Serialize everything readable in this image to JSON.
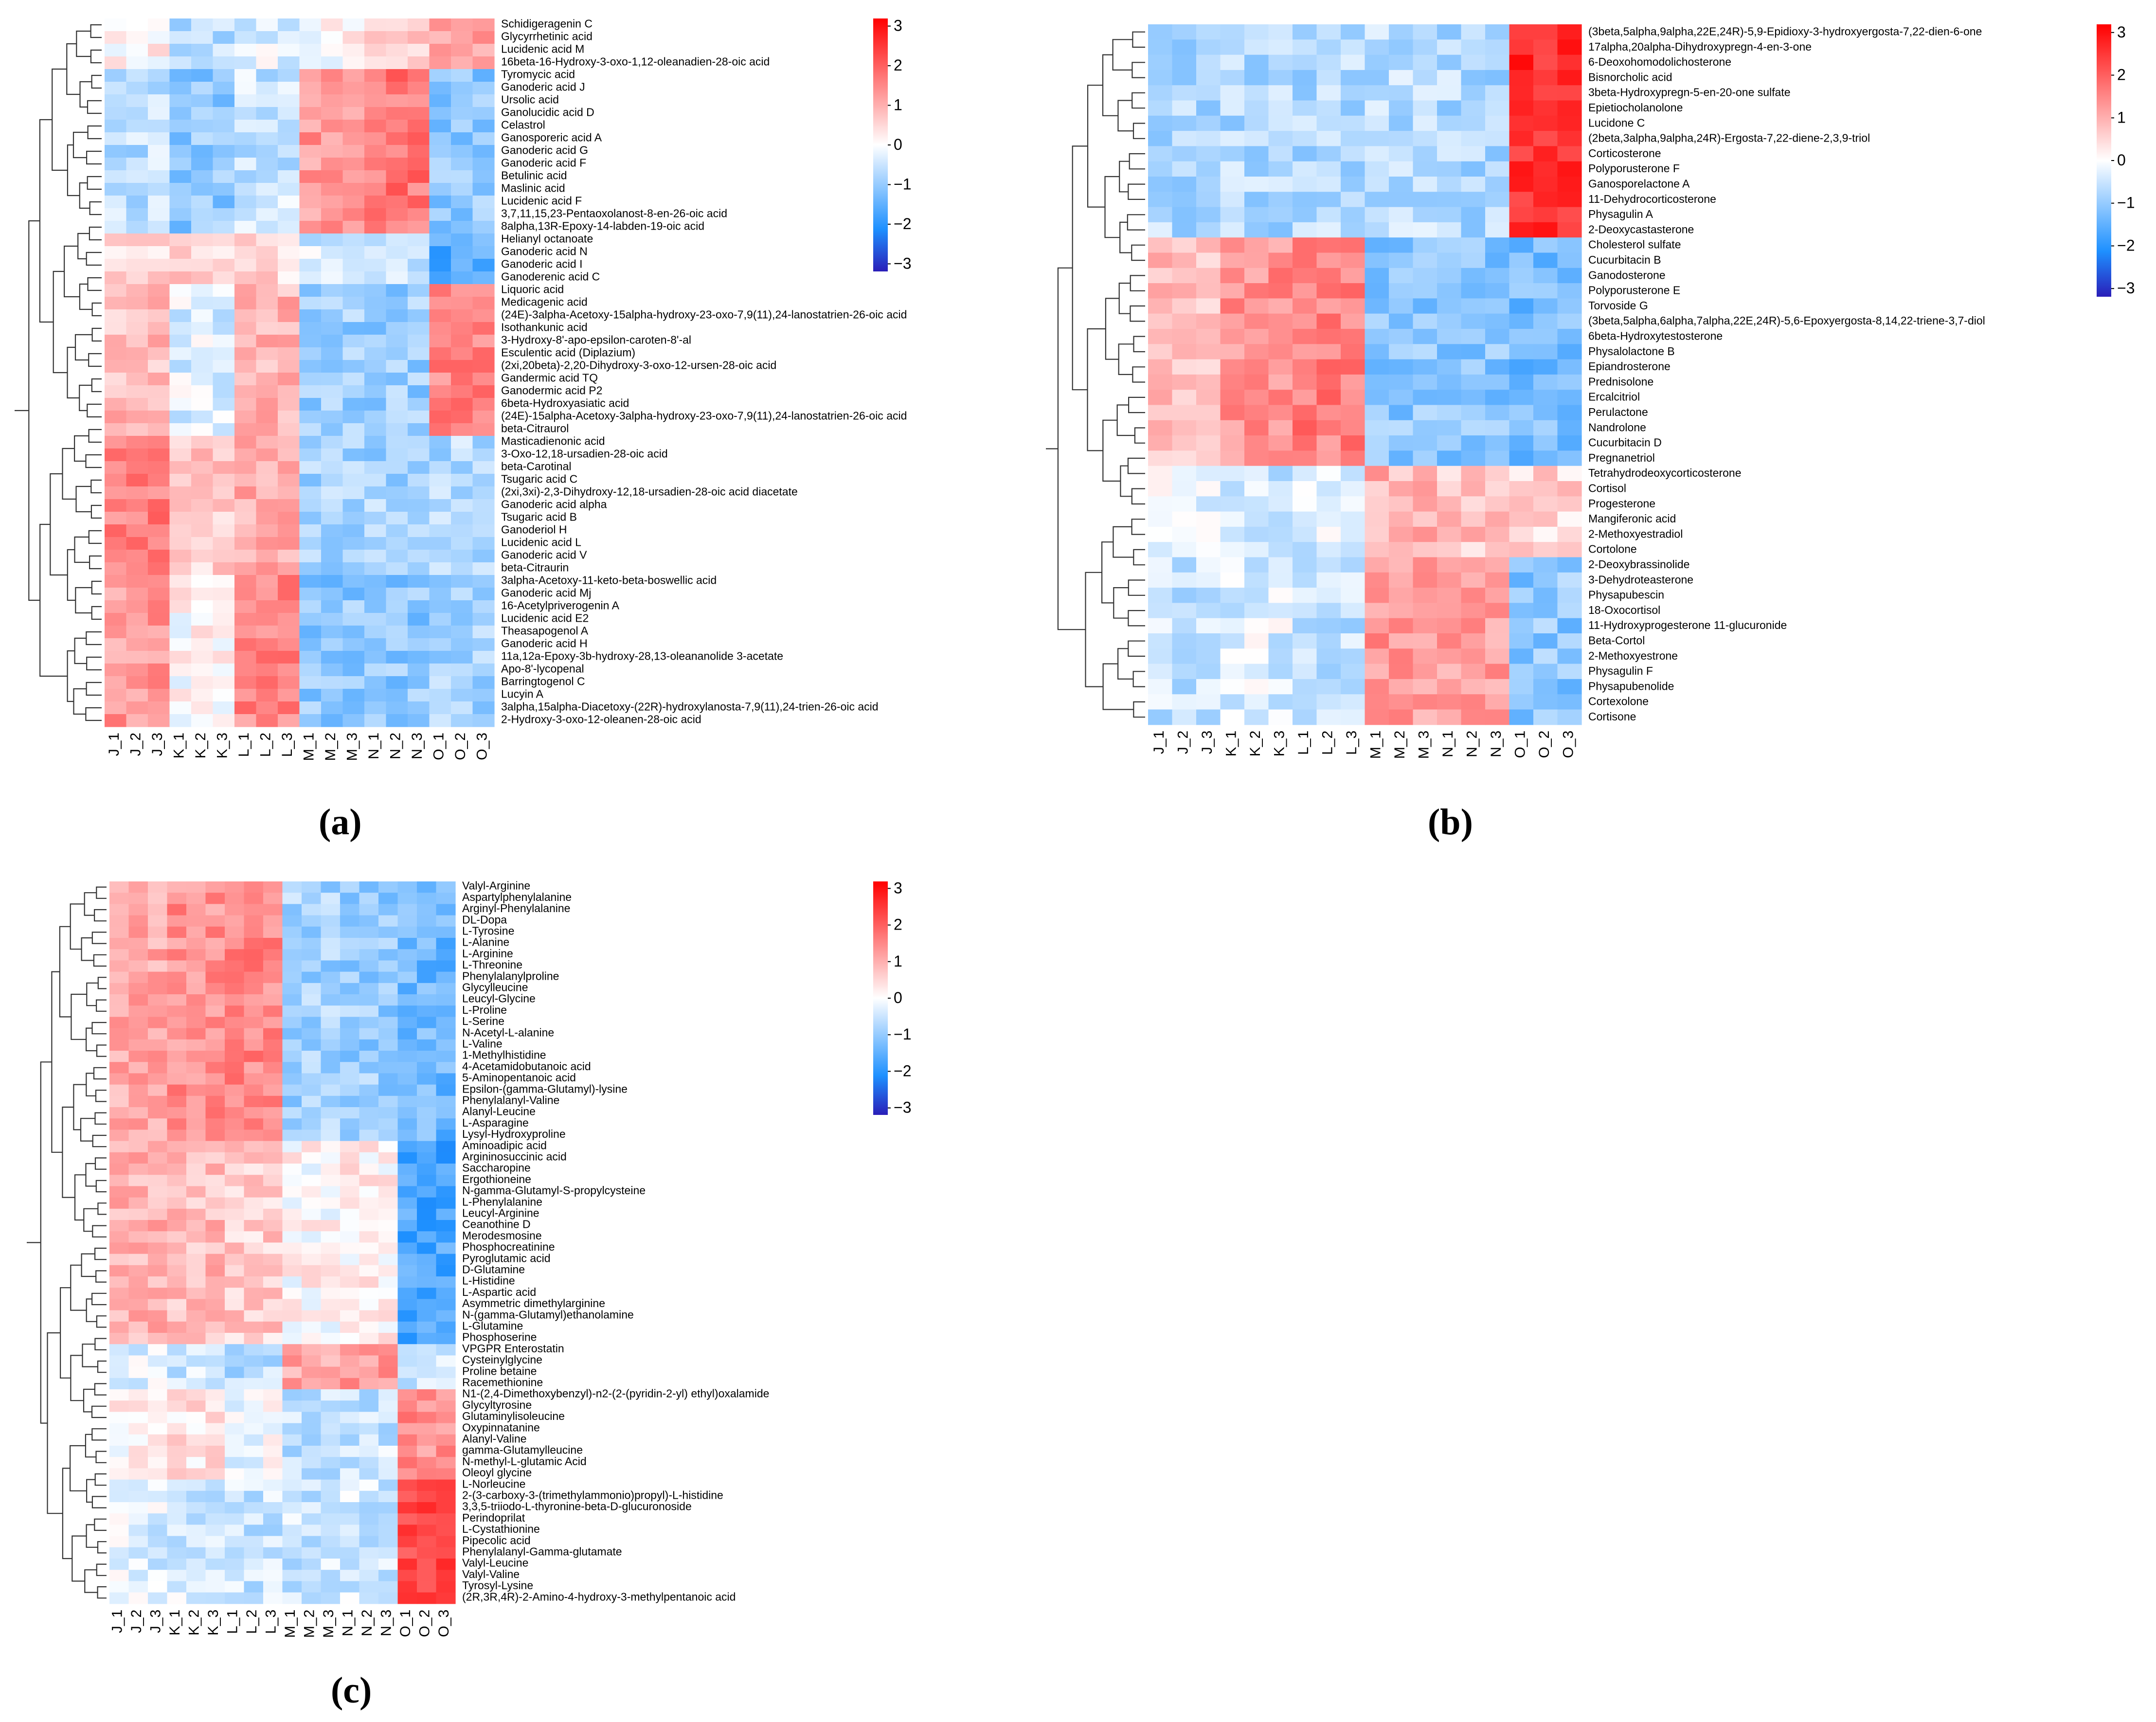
{
  "figure": {
    "panel_labels": [
      "(a)",
      "(b)",
      "(c)"
    ]
  },
  "colors": {
    "high": "#ff0000",
    "mid": "#ffffff",
    "low_mid": "#1e90ff",
    "low": "#2a1eb8",
    "dendrogram": "#333333",
    "text": "#000000"
  },
  "chart_data": [
    {
      "type": "heatmap",
      "panel": "(a)",
      "columns": [
        "J_1",
        "J_2",
        "J_3",
        "K_1",
        "K_2",
        "K_3",
        "L_1",
        "L_2",
        "L_3",
        "M_1",
        "M_2",
        "M_3",
        "N_1",
        "N_2",
        "N_3",
        "O_1",
        "O_2",
        "O_3"
      ],
      "colorbar": {
        "range": [
          -3,
          3
        ],
        "ticks": [
          "3",
          "2",
          "1",
          "0",
          "−1",
          "−2",
          "−3"
        ]
      },
      "rows": [
        "Schidigeragenin C",
        "Glycyrrhetinic acid",
        "Lucidenic acid M",
        "16beta-16-Hydroxy-3-oxo-1,12-oleanadien-28-oic acid",
        "Tyromycic acid",
        "Ganoderic acid J",
        "Ursolic acid",
        "Ganolucidic acid D",
        "Celastrol",
        "Ganosporeric acid A",
        "Ganoderic acid G",
        "Ganoderic acid F",
        "Betulinic acid",
        "Maslinic acid",
        "Lucidenic acid F",
        "3,7,11,15,23-Pentaoxolanost-8-en-26-oic acid",
        "8alpha,13R-Epoxy-14-labden-19-oic acid",
        "Helianyl octanoate",
        "Ganoderic acid N",
        "Ganoderic acid I",
        "Ganoderenic acid C",
        "Liquoric acid",
        "Medicagenic acid",
        "(24E)-3alpha-Acetoxy-15alpha-hydroxy-23-oxo-7,9(11),24-lanostatrien-26-oic acid",
        "Isothankunic acid",
        "3-Hydroxy-8'-apo-epsilon-caroten-8'-al",
        "Esculentic acid (Diplazium)",
        "(2xi,20beta)-2,20-Dihydroxy-3-oxo-12-ursen-28-oic acid",
        "Gandermic acid TQ",
        "Ganodermic acid P2",
        "6beta-Hydroxyasiatic acid",
        "(24E)-15alpha-Acetoxy-3alpha-hydroxy-23-oxo-7,9(11),24-lanostatrien-26-oic acid",
        "beta-Citraurol",
        "Masticadienonic acid",
        "3-Oxo-12,18-ursadien-28-oic acid",
        "beta-Carotinal",
        "Tsugaric acid C",
        "(2xi,3xi)-2,3-Dihydroxy-12,18-ursadien-28-oic acid diacetate",
        "Ganoderic acid alpha",
        "Tsugaric acid B",
        "Ganoderiol H",
        "Lucidenic acid L",
        "Ganoderic acid V",
        "beta-Citraurin",
        "3alpha-Acetoxy-11-keto-beta-boswellic acid",
        "Ganoderic acid Mj",
        "16-Acetylpriverogenin A",
        "Lucidenic acid E2",
        "Theasapogenol A",
        "Ganoderic acid H",
        "11a,12a-Epoxy-3b-hydroxy-28,13-oleananolide 3-acetate",
        "Apo-8'-lycopenal",
        "Barringtogenol C",
        "Lucyin A",
        "3alpha,15alpha-Diacetoxy-(22R)-hydroxylanosta-7,9(11),24-trien-26-oic acid",
        "2-Hydroxy-3-oxo-12-oleanen-28-oic acid"
      ]
    },
    {
      "type": "heatmap",
      "panel": "(b)",
      "columns": [
        "J_1",
        "J_2",
        "J_3",
        "K_1",
        "K_2",
        "K_3",
        "L_1",
        "L_2",
        "L_3",
        "M_1",
        "M_2",
        "M_3",
        "N_1",
        "N_2",
        "N_3",
        "O_1",
        "O_2",
        "O_3"
      ],
      "colorbar": {
        "range": [
          -3,
          3
        ],
        "ticks": [
          "3",
          "2",
          "1",
          "0",
          "−1",
          "−2",
          "−3"
        ]
      },
      "rows": [
        "(3beta,5alpha,9alpha,22E,24R)-5,9-Epidioxy-3-hydroxyergosta-7,22-dien-6-one",
        "17alpha,20alpha-Dihydroxypregn-4-en-3-one",
        "6-Deoxohomodolichosterone",
        "Bisnorcholic acid",
        "3beta-Hydroxypregn-5-en-20-one sulfate",
        "Epietiocholanolone",
        "Lucidone C",
        "(2beta,3alpha,9alpha,24R)-Ergosta-7,22-diene-2,3,9-triol",
        "Corticosterone",
        "Polyporusterone F",
        "Ganosporelactone A",
        "11-Dehydrocorticosterone",
        "Physagulin A",
        "2-Deoxycastasterone",
        "Cholesterol sulfate",
        "Cucurbitacin B",
        "Ganodosterone",
        "Polyporusterone E",
        "Torvoside G",
        "(3beta,5alpha,6alpha,7alpha,22E,24R)-5,6-Epoxyergosta-8,14,22-triene-3,7-diol",
        "6beta-Hydroxytestosterone",
        "Physalolactone B",
        "Epiandrosterone",
        "Prednisolone",
        "Ercalcitriol",
        "Perulactone",
        "Nandrolone",
        "Cucurbitacin D",
        "Pregnanetriol",
        "Tetrahydrodeoxycorticosterone",
        "Cortisol",
        "Progesterone",
        "Mangiferonic acid",
        "2-Methoxyestradiol",
        "Cortolone",
        "2-Deoxybrassinolide",
        "3-Dehydroteasterone",
        "Physapubescin",
        "18-Oxocortisol",
        "11-Hydroxyprogesterone 11-glucuronide",
        "Beta-Cortol",
        "2-Methoxyestrone",
        "Physagulin F",
        "Physapubenolide",
        "Cortexolone",
        "Cortisone"
      ]
    },
    {
      "type": "heatmap",
      "panel": "(c)",
      "columns": [
        "J_1",
        "J_2",
        "J_3",
        "K_1",
        "K_2",
        "K_3",
        "L_1",
        "L_2",
        "L_3",
        "M_1",
        "M_2",
        "M_3",
        "N_1",
        "N_2",
        "N_3",
        "O_1",
        "O_2",
        "O_3"
      ],
      "colorbar": {
        "range": [
          -3,
          3
        ],
        "ticks": [
          "3",
          "2",
          "1",
          "0",
          "−1",
          "−2",
          "−3"
        ]
      },
      "rows": [
        "Valyl-Arginine",
        "Aspartylphenylalanine",
        "Arginyl-Phenylalanine",
        "DL-Dopa",
        "L-Tyrosine",
        "L-Alanine",
        "L-Arginine",
        "L-Threonine",
        "Phenylalanylproline",
        "Glycylleucine",
        "Leucyl-Glycine",
        "L-Proline",
        "L-Serine",
        "N-Acetyl-L-alanine",
        "L-Valine",
        "1-Methylhistidine",
        "4-Acetamidobutanoic acid",
        "5-Aminopentanoic acid",
        "Epsilon-(gamma-Glutamyl)-lysine",
        "Phenylalanyl-Valine",
        "Alanyl-Leucine",
        "L-Asparagine",
        "Lysyl-Hydroxyproline",
        "Aminoadipic acid",
        "Argininosuccinic acid",
        "Saccharopine",
        "Ergothioneine",
        "N-gamma-Glutamyl-S-propylcysteine",
        "L-Phenylalanine",
        "Leucyl-Arginine",
        "Ceanothine D",
        "Merodesmosine",
        "Phosphocreatinine",
        "Pyroglutamic acid",
        "D-Glutamine",
        "L-Histidine",
        "L-Aspartic acid",
        "Asymmetric dimethylarginine",
        "N-(gamma-Glutamyl)ethanolamine",
        "L-Glutamine",
        "Phosphoserine",
        "VPGPR Enterostatin",
        "Cysteinylglycine",
        "Proline betaine",
        "Racemethionine",
        "N1-(2,4-Dimethoxybenzyl)-n2-(2-(pyridin-2-yl) ethyl)oxalamide",
        "Glycyltyrosine",
        "Glutaminylisoleucine",
        "Oxypinnatanine",
        "Alanyl-Valine",
        "gamma-Glutamylleucine",
        "N-methyl-L-glutamic Acid",
        "Oleoyl glycine",
        "L-Norleucine",
        "2-(3-carboxy-3-(trimethylammonio)propyl)-L-histidine",
        "3,3,5-triiodo-L-thyronine-beta-D-glucuronoside",
        "Perindoprilat",
        "L-Cystathionine",
        "Pipecolic acid",
        "Phenylalanyl-Gamma-glutamate",
        "Valyl-Leucine",
        "Valyl-Valine",
        "Tyrosyl-Lysine",
        "(2R,3R,4R)-2-Amino-4-hydroxy-3-methylpentanoic acid"
      ]
    }
  ]
}
